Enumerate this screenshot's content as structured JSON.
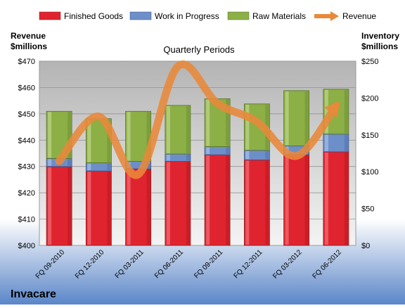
{
  "chart_data": {
    "type": "bar",
    "stacked": true,
    "title": "Quarterly Periods",
    "company": "Invacare",
    "y_left_label_line1": "Revenue",
    "y_left_label_line2": "$millions",
    "y_right_label_line1": "Inventory",
    "y_right_label_line2": "$millions",
    "y_left_lim": [
      400,
      470
    ],
    "y_left_ticks": [
      "$400",
      "$410",
      "$420",
      "$430",
      "$440",
      "$450",
      "$460",
      "$470"
    ],
    "y_right_lim": [
      0,
      250
    ],
    "y_right_ticks": [
      "$0",
      "$50",
      "$100",
      "$150",
      "$200",
      "$250"
    ],
    "categories": [
      "FQ 09-2010",
      "FQ 12-2010",
      "FQ 03-2011",
      "FQ 06-2011",
      "FQ 09-2011",
      "FQ 12-2011",
      "FQ 03-2012",
      "FQ 06-2012"
    ],
    "series": [
      {
        "name": "Finished Goods",
        "axis": "right",
        "color": "#e0242f",
        "values": [
          107,
          101,
          104,
          114,
          123,
          116,
          123,
          127
        ]
      },
      {
        "name": "Work in Progress",
        "axis": "right",
        "color": "#6d8fc9",
        "values": [
          11,
          11,
          10,
          10,
          11,
          13,
          12,
          24
        ]
      },
      {
        "name": "Raw Materials",
        "axis": "right",
        "color": "#8caf46",
        "values": [
          64,
          60,
          68,
          66,
          65,
          63,
          75,
          61
        ]
      },
      {
        "name": "Revenue",
        "axis": "left",
        "type": "line",
        "color": "#e8893a",
        "values": [
          432,
          449,
          427,
          468,
          454,
          447,
          434,
          453
        ]
      }
    ],
    "grid": true,
    "legend": "top"
  }
}
